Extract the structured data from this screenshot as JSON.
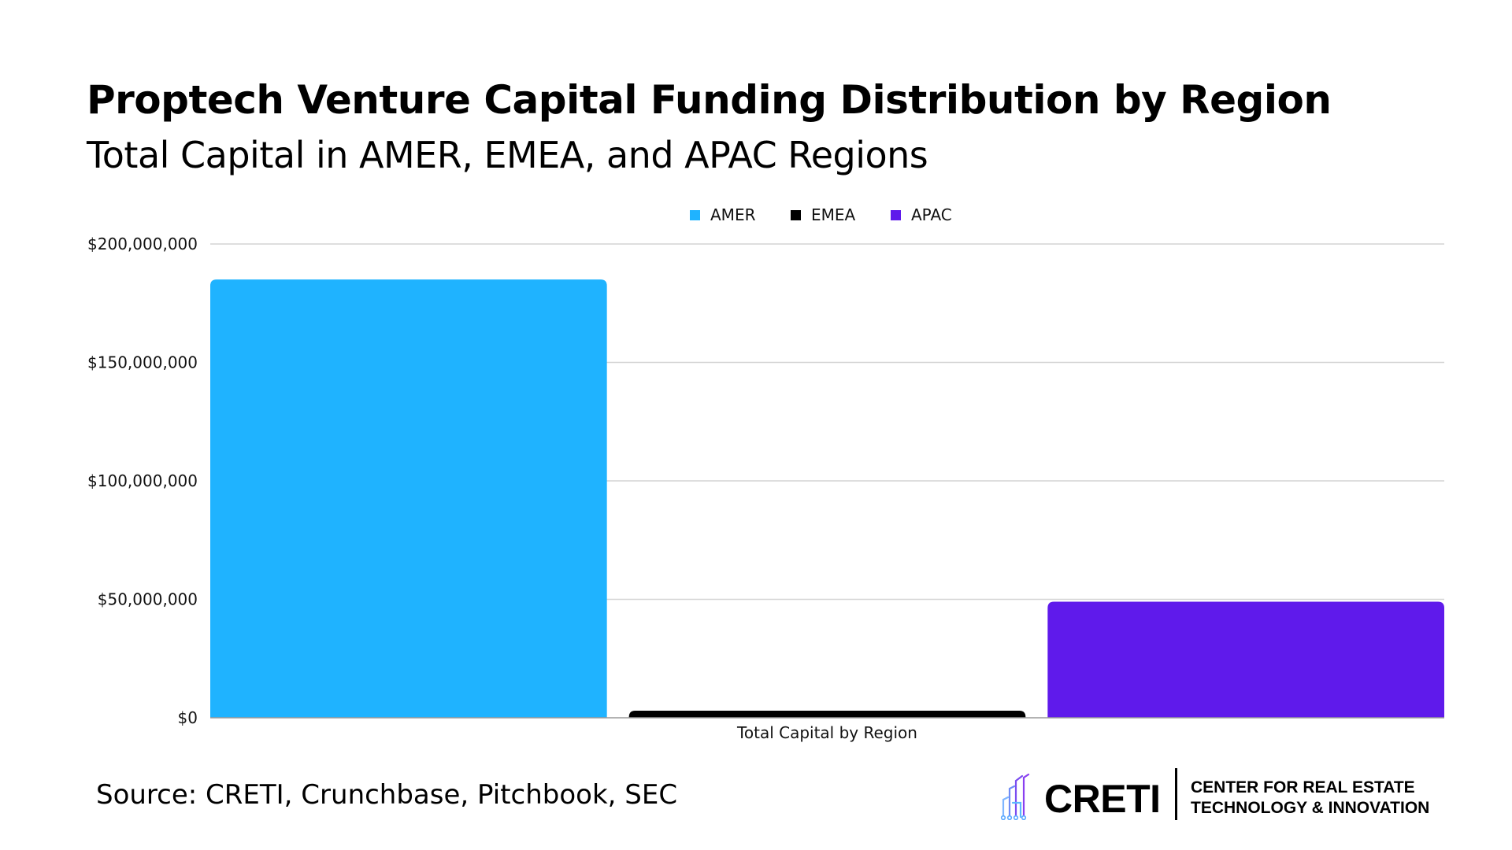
{
  "header": {
    "title": "Proptech Venture Capital Funding Distribution by Region",
    "subtitle": "Total Capital in AMER, EMEA, and APAC Regions"
  },
  "chart_data": {
    "type": "bar",
    "xlabel": "Total Capital by Region",
    "ylabel": "",
    "categories": [
      "Total Capital by Region"
    ],
    "series": [
      {
        "name": "AMER",
        "color": "#1fb3ff",
        "values": [
          185000000
        ]
      },
      {
        "name": "EMEA",
        "color": "#000000",
        "values": [
          3000000
        ]
      },
      {
        "name": "APAC",
        "color": "#5f1aeb",
        "values": [
          49000000
        ]
      }
    ],
    "ylim": [
      0,
      200000000
    ],
    "yticks": [
      0,
      50000000,
      100000000,
      150000000,
      200000000
    ],
    "ytick_labels": [
      "$0",
      "$50,000,000",
      "$100,000,000",
      "$150,000,000",
      "$200,000,000"
    ],
    "grid": true,
    "legend_position": "top-center"
  },
  "footer": {
    "source": "Source: CRETI, Crunchbase, Pitchbook, SEC",
    "logo_name": "CRETI",
    "logo_line1": "CENTER FOR REAL ESTATE",
    "logo_line2": "TECHNOLOGY & INNOVATION",
    "logo_icon": "building-circuit-icon"
  }
}
